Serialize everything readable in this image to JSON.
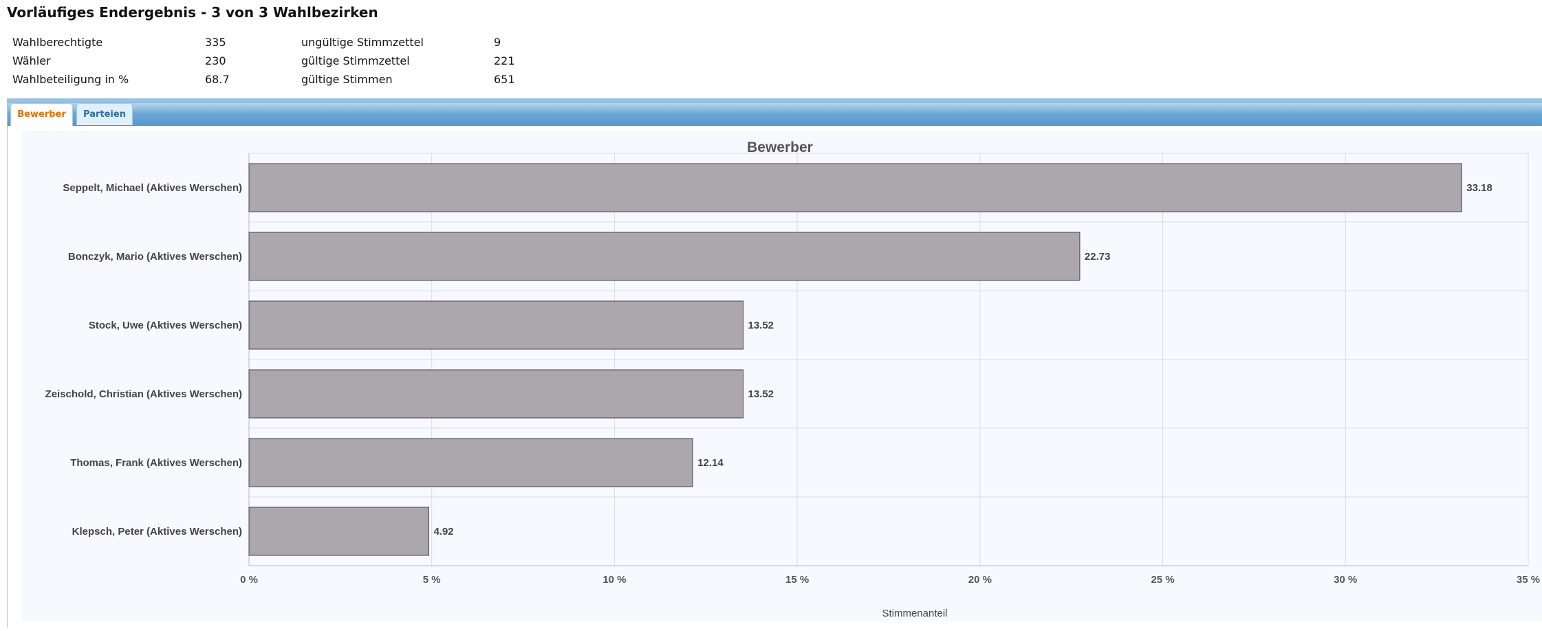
{
  "page": {
    "title": "Vorläufiges Endergebnis - 3 von 3 Wahlbezirken"
  },
  "stats": [
    {
      "label": "Wahlberechtigte",
      "value": "335",
      "label2": "ungültige Stimmzettel",
      "value2": "9"
    },
    {
      "label": "Wähler",
      "value": "230",
      "label2": "gültige Stimmzettel",
      "value2": "221"
    },
    {
      "label": "Wahlbeteiligung in %",
      "value": "68.7",
      "label2": "gültige Stimmen",
      "value2": "651"
    }
  ],
  "tabs": [
    {
      "label": "Bewerber",
      "active": true
    },
    {
      "label": "Parteien",
      "active": false
    }
  ],
  "colors": {
    "bar": "#aca6ad",
    "bar_border": "#444444",
    "active_tab_text": "#e17009",
    "inactive_tab_text": "#2e6e9e",
    "tab_bar": "#5a99cd",
    "plot_bg": "#f8f8ff",
    "grid": "#dddddd"
  },
  "chart_data": {
    "type": "bar",
    "orientation": "horizontal",
    "title": "Bewerber",
    "xlabel": "Stimmenanteil",
    "ylabel": "",
    "categories": [
      "Seppelt, Michael (Aktives Werschen)",
      "Bonczyk, Mario (Aktives Werschen)",
      "Stock, Uwe (Aktives Werschen)",
      "Zeischold, Christian (Aktives Werschen)",
      "Thomas, Frank (Aktives Werschen)",
      "Klepsch, Peter (Aktives Werschen)"
    ],
    "values": [
      33.18,
      22.73,
      13.52,
      13.52,
      12.14,
      4.92
    ],
    "data_labels": [
      "33.18",
      "22.73",
      "13.52",
      "13.52",
      "12.14",
      "4.92"
    ],
    "xlim": [
      0,
      35
    ],
    "xticks": [
      0,
      5,
      10,
      15,
      20,
      25,
      30,
      35
    ],
    "xtick_labels": [
      "0 %",
      "5 %",
      "10 %",
      "15 %",
      "20 %",
      "25 %",
      "30 %",
      "35 %"
    ],
    "grid": true,
    "legend": false
  }
}
